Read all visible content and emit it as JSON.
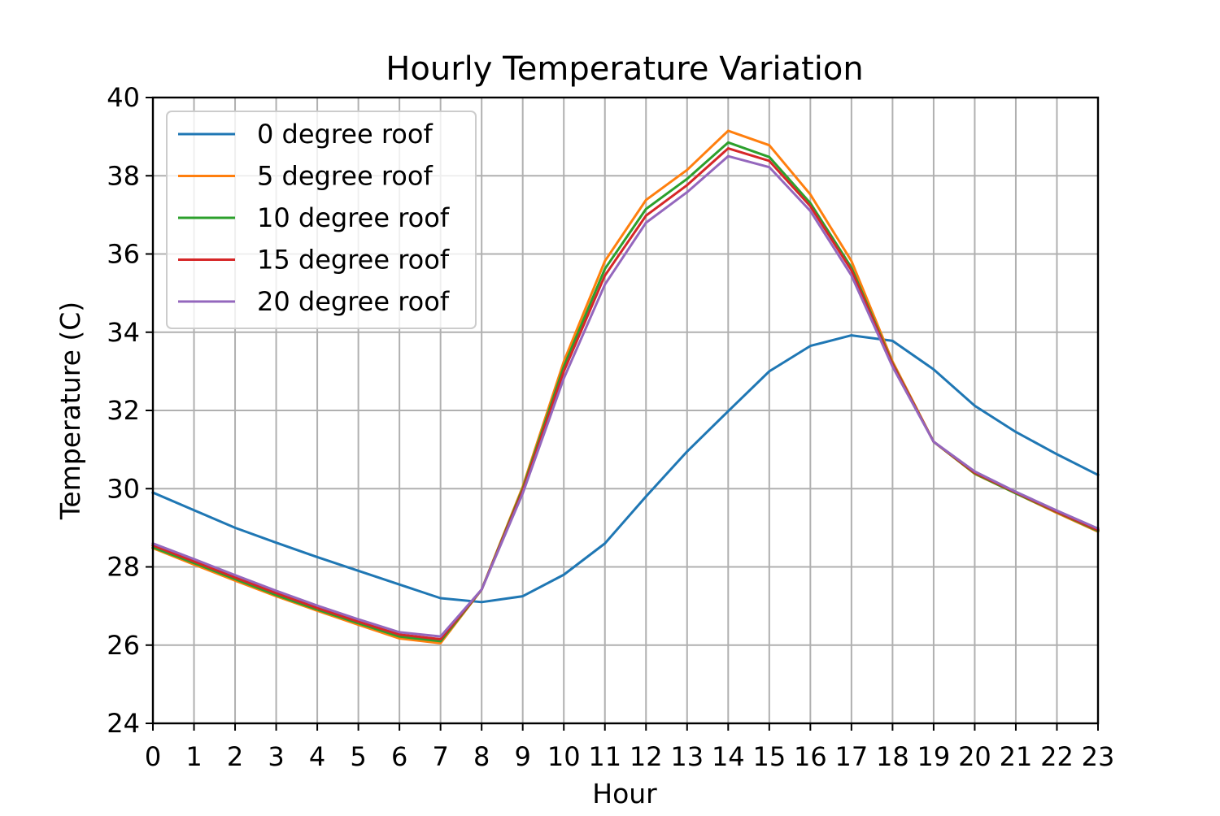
{
  "chart_data": {
    "type": "line",
    "title": "Hourly Temperature Variation",
    "xlabel": "Hour",
    "ylabel": "Temperature (C)",
    "x": [
      0,
      1,
      2,
      3,
      4,
      5,
      6,
      7,
      8,
      9,
      10,
      11,
      12,
      13,
      14,
      15,
      16,
      17,
      18,
      19,
      20,
      21,
      22,
      23
    ],
    "xlim": [
      0,
      23
    ],
    "ylim": [
      24,
      40
    ],
    "xticks": [
      0,
      1,
      2,
      3,
      4,
      5,
      6,
      7,
      8,
      9,
      10,
      11,
      12,
      13,
      14,
      15,
      16,
      17,
      18,
      19,
      20,
      21,
      22,
      23
    ],
    "yticks": [
      24,
      26,
      28,
      30,
      32,
      34,
      36,
      38,
      40
    ],
    "grid": true,
    "legend_position": "upper-left",
    "series": [
      {
        "name": "0 degree roof",
        "color": "#1f77b4",
        "values": [
          29.9,
          29.45,
          29.0,
          28.62,
          28.25,
          27.9,
          27.55,
          27.2,
          27.1,
          27.25,
          27.8,
          28.6,
          29.8,
          30.95,
          31.98,
          33.0,
          33.65,
          33.92,
          33.78,
          33.05,
          32.12,
          31.45,
          30.88,
          30.35
        ]
      },
      {
        "name": "5 degree roof",
        "color": "#ff7f0e",
        "values": [
          28.48,
          28.06,
          27.65,
          27.25,
          26.88,
          26.52,
          26.17,
          26.05,
          27.42,
          30.05,
          33.25,
          35.82,
          37.38,
          38.15,
          39.15,
          38.78,
          37.52,
          35.82,
          33.25,
          31.2,
          30.38,
          29.88,
          29.38,
          28.9
        ]
      },
      {
        "name": "10 degree roof",
        "color": "#2ca02c",
        "values": [
          28.5,
          28.1,
          27.69,
          27.28,
          26.91,
          26.56,
          26.22,
          26.1,
          27.42,
          30.0,
          33.12,
          35.62,
          37.15,
          37.92,
          38.85,
          38.48,
          37.3,
          35.65,
          33.2,
          31.2,
          30.39,
          29.88,
          29.4,
          28.92
        ]
      },
      {
        "name": "15 degree roof",
        "color": "#d62728",
        "values": [
          28.55,
          28.14,
          27.73,
          27.33,
          26.95,
          26.6,
          26.27,
          26.15,
          27.42,
          29.95,
          33.0,
          35.45,
          36.98,
          37.76,
          38.7,
          38.38,
          37.22,
          35.58,
          33.18,
          31.2,
          30.41,
          29.9,
          29.41,
          28.94
        ]
      },
      {
        "name": "20 degree roof",
        "color": "#9467bd",
        "values": [
          28.6,
          28.2,
          27.79,
          27.39,
          27.01,
          26.66,
          26.33,
          26.22,
          27.42,
          29.88,
          32.82,
          35.22,
          36.8,
          37.58,
          38.5,
          38.22,
          37.1,
          35.45,
          33.12,
          31.2,
          30.44,
          29.92,
          29.44,
          28.98
        ]
      }
    ]
  }
}
